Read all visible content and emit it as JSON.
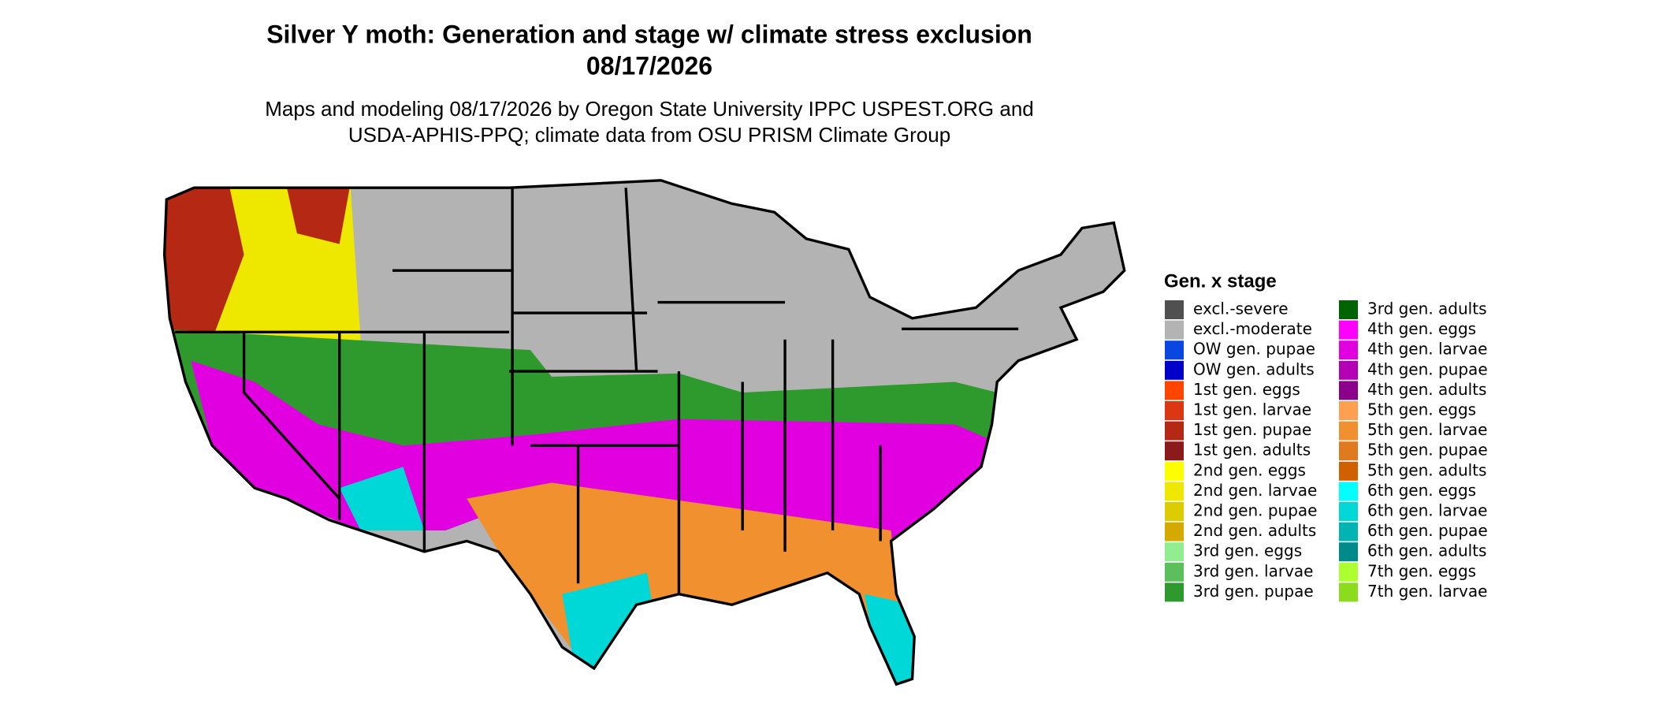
{
  "header": {
    "title_lines": [
      "Silver Y moth: Generation and stage w/ climate stress exclusion",
      "08/17/2026"
    ],
    "subtitle_lines": [
      "Maps and modeling 08/17/2026 by Oregon State University IPPC USPEST.ORG and",
      "USDA-APHIS-PPQ; climate data from OSU PRISM Climate Group"
    ]
  },
  "legend": {
    "title": "Gen. x stage",
    "items": [
      {
        "label": "excl.-severe",
        "color": "#505050"
      },
      {
        "label": "excl.-moderate",
        "color": "#b3b3b3"
      },
      {
        "label": "OW gen. pupae",
        "color": "#0a46e0"
      },
      {
        "label": "OW gen. adults",
        "color": "#0000c8"
      },
      {
        "label": "1st gen. eggs",
        "color": "#ff4500"
      },
      {
        "label": "1st gen. larvae",
        "color": "#dc3714"
      },
      {
        "label": "1st gen. pupae",
        "color": "#b42814"
      },
      {
        "label": "1st gen. adults",
        "color": "#8b1a1a"
      },
      {
        "label": "2nd gen. eggs",
        "color": "#ffff00"
      },
      {
        "label": "2nd gen. larvae",
        "color": "#eee800"
      },
      {
        "label": "2nd gen. pupae",
        "color": "#ddcc00"
      },
      {
        "label": "2nd gen. adults",
        "color": "#d4aa00"
      },
      {
        "label": "3rd gen. eggs",
        "color": "#90ee90"
      },
      {
        "label": "3rd gen. larvae",
        "color": "#5cbf5c"
      },
      {
        "label": "3rd gen. pupae",
        "color": "#2e9a2e"
      },
      {
        "label": "3rd gen. adults",
        "color": "#006400"
      },
      {
        "label": "4th gen. eggs",
        "color": "#ff00ff"
      },
      {
        "label": "4th gen. larvae",
        "color": "#e000e0"
      },
      {
        "label": "4th gen. pupae",
        "color": "#b400b4"
      },
      {
        "label": "4th gen. adults",
        "color": "#8b008b"
      },
      {
        "label": "5th gen. eggs",
        "color": "#ffa050"
      },
      {
        "label": "5th gen. larvae",
        "color": "#f0902e"
      },
      {
        "label": "5th gen. pupae",
        "color": "#e07a1e"
      },
      {
        "label": "5th gen. adults",
        "color": "#d06000"
      },
      {
        "label": "6th gen. eggs",
        "color": "#00ffff"
      },
      {
        "label": "6th gen. larvae",
        "color": "#00d8d8"
      },
      {
        "label": "6th gen. pupae",
        "color": "#00b4b4"
      },
      {
        "label": "6th gen. adults",
        "color": "#008b8b"
      },
      {
        "label": "7th gen. eggs",
        "color": "#adff2f"
      },
      {
        "label": "7th gen. larvae",
        "color": "#8cdc1e"
      }
    ]
  }
}
